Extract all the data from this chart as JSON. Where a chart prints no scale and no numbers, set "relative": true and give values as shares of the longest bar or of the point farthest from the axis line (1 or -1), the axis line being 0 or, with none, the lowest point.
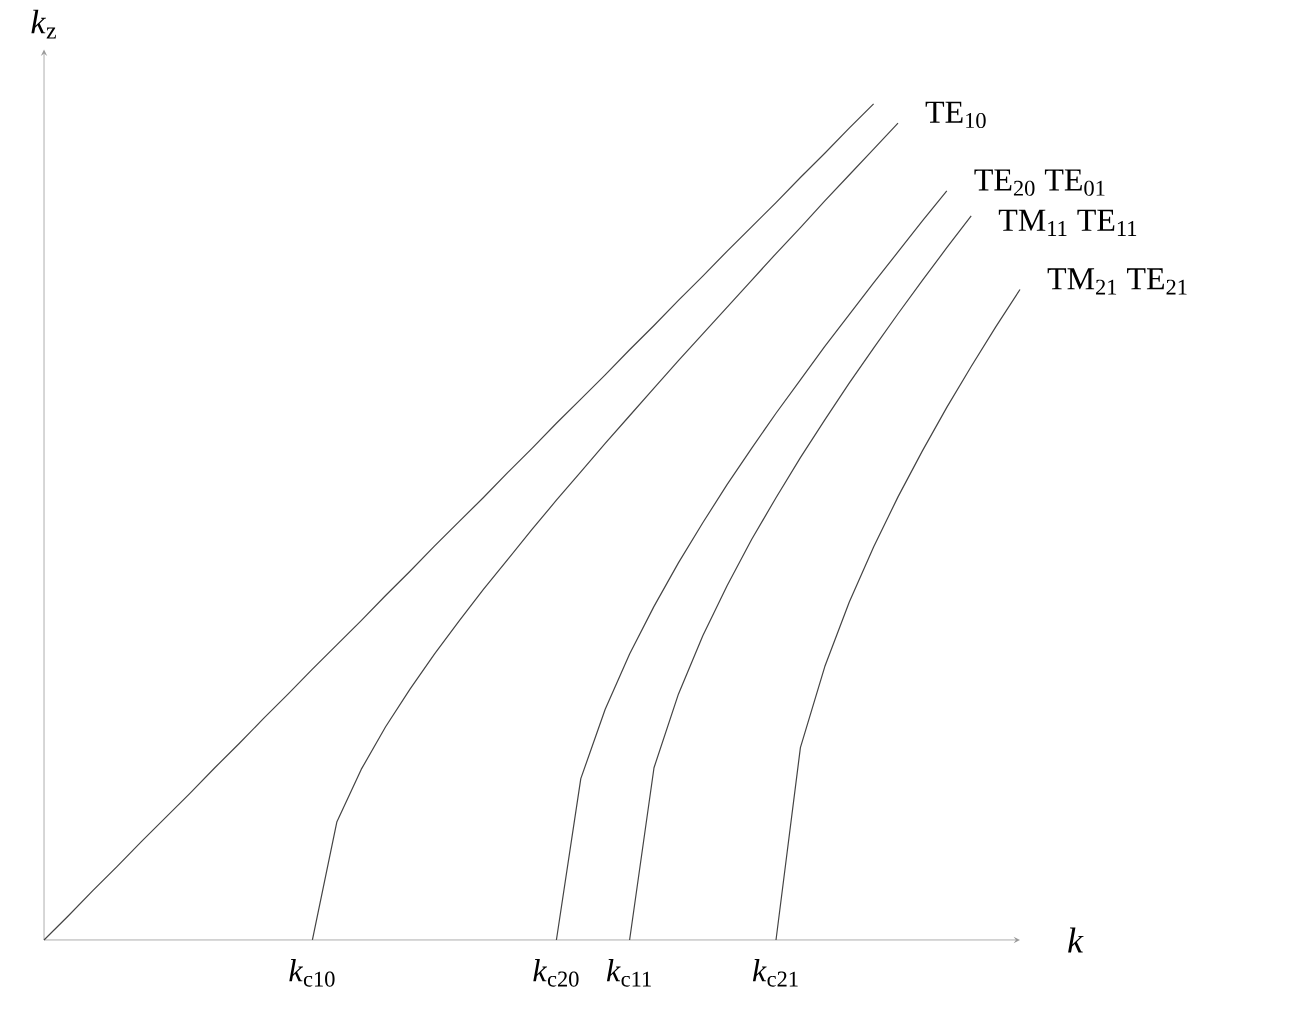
{
  "chart_data": {
    "type": "line",
    "xlabel": "*k*",
    "ylabel": "*k*$_{z}$",
    "relative": true,
    "categories": [
      null,
      null,
      null,
      null,
      null,
      null,
      null,
      null,
      null,
      null,
      null,
      null,
      null,
      null,
      null,
      null,
      null,
      null,
      null,
      null,
      null,
      null,
      null,
      null,
      null,
      null,
      null,
      null,
      null,
      null,
      null,
      null,
      null,
      null,
      null,
      null,
      null,
      null,
      null,
      null,
      null
    ],
    "annotations": [
      "*k*$_{c10}$",
      "*k*$_{c20}$",
      "*k*$_{c11}$",
      "*k*$_{c21}$"
    ],
    "series": [
      {
        "color": "#444444",
        "values": [
          0,
          0.029,
          0.059,
          0.088,
          0.118,
          0.147,
          0.176,
          0.206,
          0.235,
          0.265,
          0.294,
          0.324,
          0.353,
          0.382,
          0.412,
          0.441,
          0.471,
          0.5,
          0.529,
          0.559,
          0.588,
          0.618,
          0.647,
          0.676,
          0.706,
          0.735,
          0.765,
          0.794,
          0.824,
          0.853,
          0.882,
          0.912,
          0.941,
          0.971,
          1,
          null,
          null,
          null,
          null,
          null,
          null
        ]
      },
      {
        "name": "TE$_{10}$",
        "color": "#444444",
        "values": [
          null,
          null,
          null,
          null,
          null,
          null,
          null,
          null,
          null,
          null,
          null,
          0,
          0.141,
          0.204,
          0.255,
          0.3,
          0.342,
          0.381,
          0.419,
          0.455,
          0.491,
          0.526,
          0.56,
          0.594,
          0.627,
          0.66,
          0.693,
          0.725,
          0.757,
          0.789,
          0.821,
          0.852,
          0.884,
          0.915,
          0.946,
          0.977,
          null,
          null,
          null,
          null,
          null
        ]
      },
      {
        "name": "TE$_{20}$  TE$_{01}$",
        "color": "#444444",
        "values": [
          null,
          null,
          null,
          null,
          null,
          null,
          null,
          null,
          null,
          null,
          null,
          null,
          null,
          null,
          null,
          null,
          null,
          null,
          null,
          null,
          null,
          0,
          0.193,
          0.276,
          0.342,
          0.399,
          0.451,
          0.499,
          0.545,
          0.588,
          0.63,
          0.67,
          0.71,
          0.748,
          0.786,
          0.823,
          0.86,
          0.896,
          null,
          null,
          null
        ]
      },
      {
        "name": "TM$_{11}$  TE$_{11}$",
        "color": "#444444",
        "values": [
          null,
          null,
          null,
          null,
          null,
          null,
          null,
          null,
          null,
          null,
          null,
          null,
          null,
          null,
          null,
          null,
          null,
          null,
          null,
          null,
          null,
          null,
          null,
          null,
          0,
          0.206,
          0.294,
          0.364,
          0.424,
          0.479,
          0.529,
          0.577,
          0.622,
          0.666,
          0.708,
          0.749,
          0.789,
          0.828,
          0.866,
          null,
          null
        ]
      },
      {
        "name": "TM$_{21}$  TE$_{21}$",
        "color": "#444444",
        "values": [
          null,
          null,
          null,
          null,
          null,
          null,
          null,
          null,
          null,
          null,
          null,
          null,
          null,
          null,
          null,
          null,
          null,
          null,
          null,
          null,
          null,
          null,
          null,
          null,
          null,
          null,
          null,
          null,
          null,
          null,
          0,
          0.23,
          0.327,
          0.404,
          0.47,
          0.53,
          0.585,
          0.637,
          0.686,
          0.733,
          0.778
        ]
      }
    ]
  }
}
